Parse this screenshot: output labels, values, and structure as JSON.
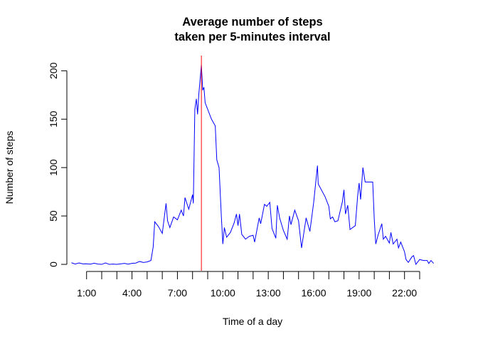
{
  "chart_data": {
    "type": "line",
    "title": [
      "Average number of steps",
      "taken per 5-minutes interval"
    ],
    "x_label": "Time of a day",
    "y_label": "Number of steps",
    "x": [
      0,
      0.25,
      0.5,
      0.75,
      1,
      1.25,
      1.5,
      1.75,
      2,
      2.25,
      2.5,
      2.75,
      3,
      3.25,
      3.5,
      3.75,
      4,
      4.25,
      4.5,
      4.75,
      5,
      5.25,
      5.4,
      5.5,
      5.75,
      6,
      6.25,
      6.35,
      6.5,
      6.75,
      7,
      7.25,
      7.4,
      7.5,
      7.75,
      8,
      8.05,
      8.15,
      8.25,
      8.33,
      8.42,
      8.5833,
      8.67,
      8.75,
      8.83,
      9.25,
      9.5,
      9.6,
      9.75,
      9.9,
      10,
      10.1,
      10.25,
      10.5,
      10.75,
      10.9,
      11,
      11.1,
      11.25,
      11.5,
      11.75,
      12,
      12.1,
      12.4,
      12.5,
      12.75,
      12.9,
      13.1,
      13.25,
      13.5,
      13.6,
      13.75,
      14,
      14.25,
      14.4,
      14.5,
      14.75,
      15,
      15.2,
      15.5,
      15.75,
      16,
      16.25,
      16.3,
      16.75,
      17,
      17.1,
      17.25,
      17.4,
      17.6,
      17.9,
      18,
      18.1,
      18.25,
      18.4,
      18.75,
      18.9,
      19,
      19.1,
      19.25,
      19.4,
      19.9,
      20,
      20.1,
      20.25,
      20.5,
      20.6,
      20.75,
      21,
      21.1,
      21.25,
      21.5,
      21.6,
      21.75,
      22,
      22.1,
      22.25,
      22.5,
      22.6,
      22.75,
      23,
      23.25,
      23.5,
      23.6,
      23.75,
      23.92
    ],
    "values": [
      1.7,
      0.3,
      1.5,
      0.5,
      0.6,
      0.2,
      1.2,
      0.3,
      0,
      1.5,
      0,
      0.3,
      0,
      0.5,
      1,
      0.2,
      1,
      1.3,
      3,
      2,
      2.5,
      4,
      18,
      44,
      39,
      32,
      63,
      45,
      38,
      49,
      46,
      56,
      50,
      69,
      57,
      72,
      63,
      160,
      171,
      155,
      177,
      206,
      180,
      183,
      167,
      150,
      143,
      108,
      100,
      50,
      21,
      38,
      28,
      33,
      43,
      52,
      40,
      52,
      31,
      26,
      29,
      30,
      23,
      48,
      42,
      62,
      60,
      64,
      37,
      27,
      61,
      48,
      35,
      26,
      50,
      41,
      56,
      45,
      17,
      48,
      34,
      64,
      102,
      83,
      70,
      60,
      47,
      49,
      44,
      45,
      65,
      77,
      52,
      61,
      36,
      40,
      70,
      84,
      67,
      100,
      85,
      85,
      47,
      21,
      30,
      42,
      26,
      29,
      22,
      33,
      21,
      26,
      17,
      23,
      13,
      5,
      2,
      8,
      9,
      0,
      5,
      4,
      4,
      1,
      4,
      1
    ],
    "color": "blue",
    "vline": 8.5833,
    "vline_color": "red",
    "xlim": [
      -0.96,
      24.88
    ],
    "xticks": [
      {
        "value": 1,
        "label": "1:00"
      },
      {
        "value": 4,
        "label": "4:00"
      },
      {
        "value": 7,
        "label": "7:00"
      },
      {
        "value": 10,
        "label": "10:00"
      },
      {
        "value": 13,
        "label": "13:00"
      },
      {
        "value": 16,
        "label": "16:00"
      },
      {
        "value": 19,
        "label": "19:00"
      },
      {
        "value": 22,
        "label": "22:00"
      }
    ],
    "xminor_ticks": [
      2,
      3,
      5,
      6,
      8,
      9,
      11,
      12,
      14,
      15,
      17,
      18,
      20,
      21,
      23
    ],
    "ylim": [
      -6.6,
      215.7
    ],
    "yticks": [
      0,
      50,
      100,
      150,
      200
    ]
  }
}
